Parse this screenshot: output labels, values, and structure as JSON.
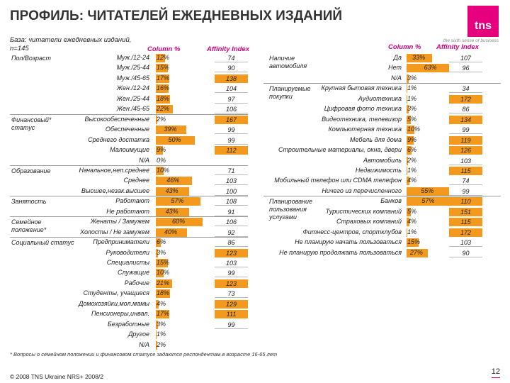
{
  "title": "ПРОФИЛЬ: ЧИТАТЕЛЕЙ ЕЖЕДНЕВНЫХ ИЗДАНИЙ",
  "logo": "tns",
  "tagline": "the sixth sense of business",
  "base_line1": "База: читатели ежедневных изданий,",
  "base_line2": "n=145",
  "col_pct": "Column %",
  "col_aff": "Affinity Index",
  "footnote": "* Вопросы о семейном положении и финансовом статусе задаются респондентам в возрасте 16-65 лет",
  "footer": "© 2008 TNS Ukraine NRS+ 2008/2",
  "page_number": "12",
  "colors": {
    "bar": "#f39a1e",
    "accent": "#e6007e"
  },
  "chart_data": {
    "type": "bar",
    "left": {
      "groups": [
        {
          "label": "Пол/Возраст",
          "rows": [
            {
              "label": "Муж./12-24",
              "pct": "12%",
              "value": 12,
              "affinity": "74",
              "high": false
            },
            {
              "label": "Муж./25-44",
              "pct": "15%",
              "value": 15,
              "affinity": "90",
              "high": false
            },
            {
              "label": "Муж./45-65",
              "pct": "17%",
              "value": 17,
              "affinity": "138",
              "high": true
            },
            {
              "label": "Жен./12-24",
              "pct": "16%",
              "value": 16,
              "affinity": "104",
              "high": false
            },
            {
              "label": "Жен./25-44",
              "pct": "18%",
              "value": 18,
              "affinity": "97",
              "high": false
            },
            {
              "label": "Жен./45-65",
              "pct": "22%",
              "value": 22,
              "affinity": "106",
              "high": false
            }
          ]
        },
        {
          "label": "Финансовый* статус",
          "rows": [
            {
              "label": "Высокообеспеченные",
              "pct": "2%",
              "value": 2,
              "affinity": "167",
              "high": true
            },
            {
              "label": "Обеспеченные",
              "pct": "39%",
              "value": 39,
              "affinity": "99",
              "high": false
            },
            {
              "label": "Среднего достатка",
              "pct": "50%",
              "value": 50,
              "affinity": "99",
              "high": false
            },
            {
              "label": "Малоимущие",
              "pct": "9%",
              "value": 9,
              "affinity": "112",
              "high": true
            },
            {
              "label": "N/A",
              "pct": "0%",
              "value": 0,
              "affinity": "",
              "high": false
            }
          ]
        },
        {
          "label": "Образование",
          "rows": [
            {
              "label": "Начальное,неп.среднее",
              "pct": "10%",
              "value": 10,
              "affinity": "71",
              "high": false
            },
            {
              "label": "Среднее",
              "pct": "46%",
              "value": 46,
              "affinity": "103",
              "high": false
            },
            {
              "label": "Высшее,незак.высшее",
              "pct": "43%",
              "value": 43,
              "affinity": "100",
              "high": false
            }
          ]
        },
        {
          "label": "Занятость",
          "rows": [
            {
              "label": "Работают",
              "pct": "57%",
              "value": 57,
              "affinity": "108",
              "high": false
            },
            {
              "label": "Не работают",
              "pct": "43%",
              "value": 43,
              "affinity": "91",
              "high": false
            }
          ]
        },
        {
          "label": "Семейное положение*",
          "rows": [
            {
              "label": "Женаты / Замужем",
              "pct": "60%",
              "value": 60,
              "affinity": "106",
              "high": false
            },
            {
              "label": "Холосты / Не замужем",
              "pct": "40%",
              "value": 40,
              "affinity": "92",
              "high": false
            }
          ]
        },
        {
          "label": "Социальный статус",
          "rows": [
            {
              "label": "Предприниматели",
              "pct": "6%",
              "value": 6,
              "affinity": "86",
              "high": false
            },
            {
              "label": "Руководители",
              "pct": "3%",
              "value": 3,
              "affinity": "123",
              "high": true
            },
            {
              "label": "Специалисты",
              "pct": "15%",
              "value": 15,
              "affinity": "103",
              "high": false
            },
            {
              "label": "Служащие",
              "pct": "10%",
              "value": 10,
              "affinity": "99",
              "high": false
            },
            {
              "label": "Рабочие",
              "pct": "21%",
              "value": 21,
              "affinity": "123",
              "high": true
            },
            {
              "label": "Студенты, учащиеся",
              "pct": "18%",
              "value": 18,
              "affinity": "73",
              "high": false
            },
            {
              "label": "Домохозяйки,мол.мамы",
              "pct": "4%",
              "value": 4,
              "affinity": "129",
              "high": true
            },
            {
              "label": "Пенсионеры,инвал.",
              "pct": "17%",
              "value": 17,
              "affinity": "111",
              "high": true
            },
            {
              "label": "Безработные",
              "pct": "3%",
              "value": 3,
              "affinity": "99",
              "high": false
            },
            {
              "label": "Другое",
              "pct": "1%",
              "value": 1,
              "affinity": "",
              "high": false
            },
            {
              "label": "N/A",
              "pct": "2%",
              "value": 2,
              "affinity": "",
              "high": false
            }
          ]
        }
      ]
    },
    "right": {
      "groups": [
        {
          "label": "Наличие автомобиля",
          "rows": [
            {
              "label": "Да",
              "pct": "33%",
              "value": 33,
              "affinity": "107",
              "high": false
            },
            {
              "label": "Нет",
              "pct": "63%",
              "value": 63,
              "affinity": "96",
              "high": false
            },
            {
              "label": "N/A",
              "pct": "3%",
              "value": 3,
              "affinity": "",
              "high": false
            }
          ]
        },
        {
          "label": "Планируемые покупки",
          "rows": [
            {
              "label": "Крупная бытовая техника",
              "pct": "1%",
              "value": 1,
              "affinity": "34",
              "high": false
            },
            {
              "label": "Аудиотехника",
              "pct": "1%",
              "value": 1,
              "affinity": "172",
              "high": true
            },
            {
              "label": "Цифровая фото техника",
              "pct": "3%",
              "value": 3,
              "affinity": "86",
              "high": false
            },
            {
              "label": "Видеотехника, телевизор",
              "pct": "5%",
              "value": 5,
              "affinity": "134",
              "high": true
            },
            {
              "label": "Компьютерная техника",
              "pct": "10%",
              "value": 10,
              "affinity": "99",
              "high": false
            },
            {
              "label": "Мебель для дома",
              "pct": "9%",
              "value": 9,
              "affinity": "119",
              "high": true
            },
            {
              "label": "Строительные материалы, окна, двери",
              "pct": "6%",
              "value": 6,
              "affinity": "126",
              "high": true
            },
            {
              "label": "Автомобиль",
              "pct": "2%",
              "value": 2,
              "affinity": "103",
              "high": false
            },
            {
              "label": "Недвижимость",
              "pct": "1%",
              "value": 1,
              "affinity": "115",
              "high": true
            },
            {
              "label": "Мобильный телефон или CDMA телефон",
              "pct": "4%",
              "value": 4,
              "affinity": "74",
              "high": false
            },
            {
              "label": "Ничего из перечисленного",
              "pct": "55%",
              "value": 55,
              "affinity": "99",
              "high": false
            }
          ]
        },
        {
          "label": "Планирование пользования услугами",
          "rows": [
            {
              "label": "Банков",
              "pct": "57%",
              "value": 57,
              "affinity": "110",
              "high": true
            },
            {
              "label": "Туристических компаний",
              "pct": "5%",
              "value": 5,
              "affinity": "151",
              "high": true
            },
            {
              "label": "Страховых компаний",
              "pct": "4%",
              "value": 4,
              "affinity": "115",
              "high": true
            },
            {
              "label": "Фитнесс-центров, спортклубов",
              "pct": "1%",
              "value": 1,
              "affinity": "172",
              "high": true
            },
            {
              "label": "Не планирую начать пользоваться",
              "pct": "15%",
              "value": 15,
              "affinity": "103",
              "high": false
            },
            {
              "label": "Не планирую продолжать пользоваться",
              "pct": "27%",
              "value": 27,
              "affinity": "90",
              "high": false
            }
          ]
        }
      ]
    }
  }
}
